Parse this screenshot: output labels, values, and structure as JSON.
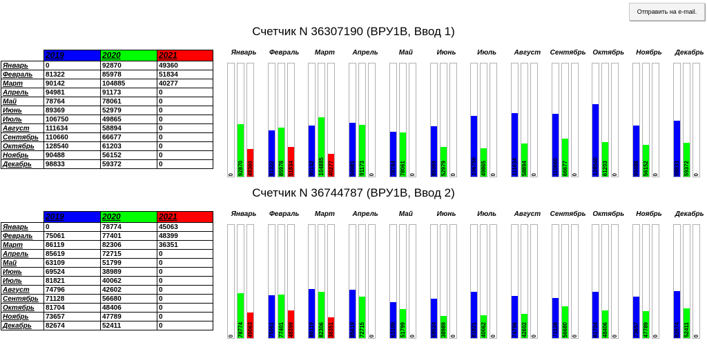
{
  "email_button": "Отправить на e-mail.",
  "colors": {
    "y2019": "#0000ff",
    "y2020": "#00ff00",
    "y2021": "#ff0000"
  },
  "meters": [
    {
      "title": "Счетчик N 36307190 (ВРУ1В, Ввод 1)",
      "years": [
        "2019",
        "2020",
        "2021"
      ],
      "rows": [
        {
          "month": "Январь",
          "v2019": "0",
          "v2020": "92870",
          "v2021": "49360"
        },
        {
          "month": "Февраль",
          "v2019": "81322",
          "v2020": "85978",
          "v2021": "51834"
        },
        {
          "month": "Март",
          "v2019": "90142",
          "v2020": "104885",
          "v2021": "40277"
        },
        {
          "month": "Апрель",
          "v2019": "94981",
          "v2020": "91173",
          "v2021": "0"
        },
        {
          "month": "Май",
          "v2019": "78764",
          "v2020": "78061",
          "v2021": "0"
        },
        {
          "month": "Июнь",
          "v2019": "89369",
          "v2020": "52979",
          "v2021": "0"
        },
        {
          "month": "Июль",
          "v2019": "106750",
          "v2020": "49865",
          "v2021": "0"
        },
        {
          "month": "Август",
          "v2019": "111634",
          "v2020": "58894",
          "v2021": "0"
        },
        {
          "month": "Сентябрь",
          "v2019": "110660",
          "v2020": "66677",
          "v2021": "0"
        },
        {
          "month": "Октябрь",
          "v2019": "128540",
          "v2020": "61203",
          "v2021": "0"
        },
        {
          "month": "Ноябрь",
          "v2019": "90488",
          "v2020": "56152",
          "v2021": "0"
        },
        {
          "month": "Декабрь",
          "v2019": "98833",
          "v2020": "59372",
          "v2021": "0"
        }
      ]
    },
    {
      "title": "Счетчик N 36744787 (ВРУ1В, Ввод 2)",
      "years": [
        "2019",
        "2020",
        "2021"
      ],
      "rows": [
        {
          "month": "Январь",
          "v2019": "0",
          "v2020": "78774",
          "v2021": "45063"
        },
        {
          "month": "Февраль",
          "v2019": "75061",
          "v2020": "77401",
          "v2021": "48399"
        },
        {
          "month": "Март",
          "v2019": "86119",
          "v2020": "82306",
          "v2021": "36351"
        },
        {
          "month": "Апрель",
          "v2019": "85619",
          "v2020": "72715",
          "v2021": "0"
        },
        {
          "month": "Май",
          "v2019": "63109",
          "v2020": "51799",
          "v2021": "0"
        },
        {
          "month": "Июнь",
          "v2019": "69524",
          "v2020": "38989",
          "v2021": "0"
        },
        {
          "month": "Июль",
          "v2019": "81821",
          "v2020": "40062",
          "v2021": "0"
        },
        {
          "month": "Август",
          "v2019": "74796",
          "v2020": "42602",
          "v2021": "0"
        },
        {
          "month": "Сентябрь",
          "v2019": "71128",
          "v2020": "56680",
          "v2021": "0"
        },
        {
          "month": "Октябрь",
          "v2019": "81704",
          "v2020": "48406",
          "v2021": "0"
        },
        {
          "month": "Ноябрь",
          "v2019": "73657",
          "v2020": "47789",
          "v2021": "0"
        },
        {
          "month": "Декабрь",
          "v2019": "82674",
          "v2020": "52411",
          "v2021": "0"
        }
      ]
    }
  ],
  "chart_data": [
    {
      "type": "bar",
      "categories": [
        "Январь",
        "Февраль",
        "Март",
        "Апрель",
        "Май",
        "Июнь",
        "Июль",
        "Август",
        "Сентябрь",
        "Октябрь",
        "Ноябрь",
        "Декабрь"
      ],
      "series": [
        {
          "name": "2019",
          "values": [
            0,
            81322,
            90142,
            94981,
            78764,
            89369,
            106750,
            111634,
            110660,
            128540,
            90488,
            98833
          ]
        },
        {
          "name": "2020",
          "values": [
            92870,
            85978,
            104885,
            91173,
            78061,
            52979,
            49865,
            58894,
            66677,
            61203,
            56152,
            59372
          ]
        },
        {
          "name": "2021",
          "values": [
            49360,
            51834,
            40277,
            0,
            0,
            0,
            0,
            0,
            0,
            0,
            0,
            0
          ]
        }
      ],
      "ylim": [
        0,
        200000
      ]
    },
    {
      "type": "bar",
      "categories": [
        "Январь",
        "Февраль",
        "Март",
        "Апрель",
        "Май",
        "Июнь",
        "Июль",
        "Август",
        "Сентябрь",
        "Октябрь",
        "Ноябрь",
        "Декабрь"
      ],
      "series": [
        {
          "name": "2019",
          "values": [
            0,
            75061,
            86119,
            85619,
            63109,
            69524,
            81821,
            74796,
            71128,
            81704,
            73657,
            82674
          ]
        },
        {
          "name": "2020",
          "values": [
            78774,
            77401,
            82306,
            72715,
            51799,
            38989,
            40062,
            42602,
            56680,
            48406,
            47789,
            52411
          ]
        },
        {
          "name": "2021",
          "values": [
            45063,
            48399,
            36351,
            0,
            0,
            0,
            0,
            0,
            0,
            0,
            0,
            0
          ]
        }
      ],
      "ylim": [
        0,
        200000
      ]
    }
  ]
}
